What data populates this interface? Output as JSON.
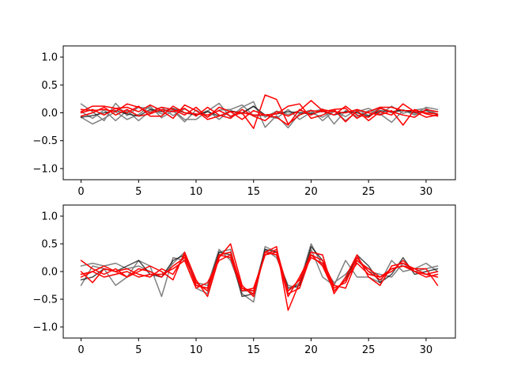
{
  "colors": {
    "gray": "#808080",
    "black": "#000000",
    "red": "#ff0000"
  },
  "chart_data": [
    {
      "type": "line",
      "grid": false,
      "legend": "none",
      "x": [
        0,
        1,
        2,
        3,
        4,
        5,
        6,
        7,
        8,
        9,
        10,
        11,
        12,
        13,
        14,
        15,
        16,
        17,
        18,
        19,
        20,
        21,
        22,
        23,
        24,
        25,
        26,
        27,
        28,
        29,
        30,
        31
      ],
      "xlim": [
        -1.55,
        32.55
      ],
      "ylim": [
        -1.2,
        1.2
      ],
      "xticks": [
        0,
        5,
        10,
        15,
        20,
        25,
        30
      ],
      "xtick_labels": [
        "0",
        "5",
        "10",
        "15",
        "20",
        "25",
        "30"
      ],
      "yticks": [
        -1.0,
        -0.5,
        0.0,
        0.5,
        1.0
      ],
      "ytick_labels": [
        "−1.0",
        "−0.5",
        "0.0",
        "0.5",
        "1.0"
      ],
      "series": [
        {
          "color": "gray",
          "values": [
            0.16,
            0.02,
            -0.14,
            0.17,
            -0.05,
            0.1,
            0.08,
            -0.02,
            0.05,
            -0.12,
            -0.12,
            0.03,
            0.17,
            -0.08,
            0.1,
            0.2,
            -0.26,
            -0.05,
            -0.27,
            -0.01,
            0.05,
            -0.14,
            0.03,
            -0.07,
            0.06,
            -0.05,
            0.1,
            0.0,
            0.05,
            -0.04,
            0.05,
            0.02
          ]
        },
        {
          "color": "gray",
          "values": [
            -0.08,
            -0.2,
            -0.1,
            0.02,
            -0.12,
            -0.03,
            0.12,
            -0.09,
            0.04,
            -0.16,
            0.05,
            -0.08,
            0.05,
            0.06,
            0.14,
            -0.05,
            -0.05,
            -0.1,
            0.06,
            -0.12,
            0.01,
            0.07,
            -0.2,
            0.04,
            -0.07,
            0.04,
            -0.03,
            0.12,
            -0.01,
            0.05,
            0.08,
            -0.03
          ]
        },
        {
          "color": "gray",
          "values": [
            0.02,
            -0.1,
            0.05,
            -0.14,
            0.04,
            -0.14,
            0.03,
            0.1,
            -0.05,
            0.07,
            -0.05,
            0.04,
            -0.12,
            0.04,
            -0.02,
            0.12,
            -0.08,
            0.03,
            -0.03,
            0.04,
            0.0,
            -0.08,
            0.04,
            -0.14,
            0.02,
            0.08,
            -0.02,
            -0.17,
            0.04,
            -0.03,
            0.1,
            0.06
          ]
        },
        {
          "color": "black",
          "values": [
            -0.08,
            -0.05,
            0.0,
            0.04,
            -0.02,
            -0.06,
            0.06,
            0.02,
            0.08,
            0.0,
            -0.04,
            0.02,
            -0.06,
            0.03,
            0.0,
            0.12,
            -0.04,
            -0.02,
            0.02,
            0.0,
            -0.02,
            0.03,
            -0.04,
            0.02,
            0.0,
            -0.06,
            0.04,
            0.02,
            0.05,
            0.0,
            0.04,
            -0.04
          ]
        },
        {
          "color": "red",
          "values": [
            0.02,
            0.12,
            0.12,
            0.08,
            0.1,
            0.02,
            0.14,
            0.04,
            -0.1,
            0.14,
            0.04,
            -0.12,
            -0.06,
            0.02,
            0.0,
            -0.28,
            0.32,
            0.24,
            -0.2,
            -0.04,
            0.04,
            0.02,
            0.06,
            0.08,
            -0.1,
            0.02,
            0.1,
            0.1,
            0.04,
            0.04,
            0.0,
            -0.02
          ]
        },
        {
          "color": "red",
          "values": [
            0.06,
            0.04,
            0.06,
            0.02,
            0.16,
            0.1,
            0.0,
            0.1,
            0.06,
            -0.04,
            0.1,
            -0.08,
            0.1,
            0.02,
            -0.12,
            0.04,
            -0.04,
            -0.02,
            0.12,
            0.16,
            -0.1,
            -0.04,
            0.06,
            -0.16,
            0.04,
            -0.14,
            0.02,
            -0.04,
            0.16,
            0.02,
            -0.08,
            -0.04
          ]
        },
        {
          "color": "red",
          "values": [
            -0.06,
            0.0,
            0.1,
            -0.04,
            0.06,
            -0.06,
            -0.02,
            0.06,
            0.02,
            0.08,
            -0.06,
            0.1,
            -0.04,
            -0.1,
            0.06,
            -0.06,
            -0.14,
            0.02,
            -0.06,
            0.04,
            0.22,
            0.04,
            -0.04,
            0.12,
            -0.04,
            -0.08,
            0.08,
            0.02,
            -0.04,
            -0.08,
            0.06,
            0.02
          ]
        },
        {
          "color": "red",
          "values": [
            0.0,
            0.06,
            -0.04,
            0.08,
            0.0,
            0.12,
            -0.06,
            -0.06,
            0.12,
            0.0,
            -0.02,
            -0.04,
            0.04,
            -0.06,
            0.0,
            -0.04,
            -0.04,
            -0.08,
            -0.22,
            0.06,
            -0.04,
            0.06,
            0.02,
            0.0,
            0.06,
            0.0,
            -0.04,
            0.04,
            -0.22,
            0.06,
            -0.02,
            -0.06
          ]
        }
      ]
    },
    {
      "type": "line",
      "grid": false,
      "legend": "none",
      "x": [
        0,
        1,
        2,
        3,
        4,
        5,
        6,
        7,
        8,
        9,
        10,
        11,
        12,
        13,
        14,
        15,
        16,
        17,
        18,
        19,
        20,
        21,
        22,
        23,
        24,
        25,
        26,
        27,
        28,
        29,
        30,
        31
      ],
      "xlim": [
        -1.55,
        32.55
      ],
      "ylim": [
        -1.2,
        1.2
      ],
      "xticks": [
        0,
        5,
        10,
        15,
        20,
        25,
        30
      ],
      "xtick_labels": [
        "0",
        "5",
        "10",
        "15",
        "20",
        "25",
        "30"
      ],
      "yticks": [
        -1.0,
        -0.5,
        0.0,
        0.5,
        1.0
      ],
      "ytick_labels": [
        "−1.0",
        "−0.5",
        "0.0",
        "0.5",
        "1.0"
      ],
      "series": [
        {
          "color": "gray",
          "values": [
            -0.25,
            0.1,
            0.05,
            -0.25,
            -0.1,
            0.2,
            0.1,
            -0.45,
            0.25,
            0.2,
            -0.3,
            -0.4,
            0.35,
            0.4,
            -0.4,
            -0.55,
            0.45,
            0.35,
            -0.35,
            -0.2,
            0.5,
            0.1,
            -0.2,
            -0.05,
            0.2,
            0.0,
            -0.05,
            -0.1,
            0.15,
            0.0,
            0.05,
            0.1
          ]
        },
        {
          "color": "gray",
          "values": [
            0.1,
            0.15,
            0.1,
            0.15,
            0.05,
            0.1,
            0.0,
            -0.1,
            0.15,
            0.35,
            -0.2,
            -0.25,
            0.4,
            0.2,
            -0.35,
            -0.35,
            0.4,
            0.25,
            -0.25,
            -0.3,
            0.4,
            -0.1,
            -0.25,
            0.2,
            -0.1,
            -0.1,
            -0.2,
            0.2,
            0.0,
            0.05,
            0.15,
            0.0
          ]
        },
        {
          "color": "black",
          "values": [
            -0.15,
            -0.1,
            0.05,
            0.0,
            0.1,
            0.2,
            -0.05,
            -0.1,
            0.2,
            0.3,
            -0.25,
            -0.3,
            0.35,
            0.3,
            -0.45,
            -0.4,
            0.4,
            0.35,
            -0.3,
            -0.25,
            0.45,
            0.2,
            -0.35,
            -0.15,
            0.3,
            0.1,
            -0.2,
            -0.05,
            0.25,
            -0.05,
            0.0,
            0.05
          ]
        },
        {
          "color": "red",
          "values": [
            0.2,
            0.05,
            -0.05,
            0.05,
            -0.1,
            0.0,
            0.1,
            0.0,
            -0.15,
            0.35,
            -0.15,
            -0.45,
            0.25,
            0.5,
            -0.25,
            -0.45,
            0.35,
            0.45,
            -0.7,
            -0.2,
            0.35,
            0.3,
            -0.4,
            -0.1,
            0.3,
            -0.1,
            -0.25,
            0.1,
            0.15,
            0.05,
            -0.05,
            0.0
          ]
        },
        {
          "color": "red",
          "values": [
            0.0,
            -0.2,
            0.05,
            0.0,
            0.05,
            -0.05,
            -0.1,
            0.05,
            -0.05,
            0.3,
            -0.25,
            -0.3,
            0.3,
            0.25,
            -0.35,
            -0.3,
            0.3,
            0.4,
            -0.35,
            -0.15,
            0.25,
            0.15,
            -0.3,
            -0.2,
            0.25,
            0.0,
            -0.15,
            0.05,
            0.1,
            0.0,
            -0.05,
            -0.1
          ]
        },
        {
          "color": "red",
          "values": [
            -0.1,
            0.0,
            -0.1,
            -0.05,
            0.0,
            -0.1,
            -0.05,
            -0.05,
            0.05,
            0.2,
            -0.3,
            -0.2,
            0.2,
            0.3,
            -0.3,
            -0.4,
            0.35,
            0.3,
            -0.4,
            -0.3,
            0.3,
            0.2,
            -0.25,
            -0.3,
            0.2,
            0.05,
            -0.1,
            0.0,
            0.2,
            0.0,
            -0.1,
            -0.05
          ]
        },
        {
          "color": "red",
          "values": [
            -0.05,
            0.0,
            0.1,
            0.0,
            -0.1,
            0.05,
            0.0,
            -0.1,
            0.1,
            0.25,
            -0.2,
            -0.35,
            0.3,
            0.35,
            -0.3,
            -0.35,
            0.3,
            0.35,
            -0.45,
            -0.1,
            0.3,
            0.1,
            -0.35,
            -0.15,
            0.15,
            -0.05,
            -0.1,
            0.05,
            0.1,
            0.05,
            0.05,
            -0.25
          ]
        }
      ]
    }
  ]
}
